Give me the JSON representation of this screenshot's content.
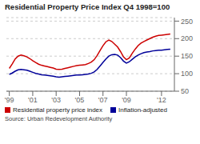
{
  "chart_data": {
    "type": "line",
    "title": "Residential Property Price Index  Q4 1998=100",
    "annotations": [
      "Source: Urban Redevelopment Authority"
    ],
    "x": [
      1999.0,
      1999.25,
      1999.5,
      1999.75,
      2000.0,
      2000.25,
      2000.5,
      2000.75,
      2001.0,
      2001.25,
      2001.5,
      2001.75,
      2002.0,
      2002.25,
      2002.5,
      2002.75,
      2003.0,
      2003.25,
      2003.5,
      2003.75,
      2004.0,
      2004.25,
      2004.5,
      2004.75,
      2005.0,
      2005.25,
      2005.5,
      2005.75,
      2006.0,
      2006.25,
      2006.5,
      2006.75,
      2007.0,
      2007.25,
      2007.5,
      2007.75,
      2008.0,
      2008.25,
      2008.5,
      2008.75,
      2009.0,
      2009.25,
      2009.5,
      2009.75,
      2010.0,
      2010.25,
      2010.5,
      2010.75,
      2011.0,
      2011.25,
      2011.5,
      2011.75,
      2012.0,
      2012.25,
      2012.5,
      2012.75
    ],
    "series": [
      {
        "name": "Residential property price index",
        "color": "#cc0000",
        "values": [
          115,
          128,
          142,
          150,
          153,
          151,
          148,
          143,
          137,
          132,
          127,
          124,
          122,
          120,
          118,
          116,
          113,
          112,
          113,
          115,
          117,
          119,
          121,
          123,
          124,
          125,
          126,
          129,
          133,
          140,
          152,
          166,
          180,
          191,
          196,
          192,
          184,
          176,
          163,
          148,
          140,
          145,
          158,
          170,
          180,
          187,
          192,
          196,
          200,
          204,
          207,
          209,
          210,
          211,
          212,
          213
        ]
      },
      {
        "name": "Inflation-adjusted",
        "color": "#000099",
        "values": [
          98,
          102,
          107,
          111,
          112,
          111,
          110,
          107,
          104,
          101,
          99,
          97,
          96,
          95,
          94,
          93,
          91,
          90,
          91,
          92,
          93,
          94,
          95,
          96,
          96,
          97,
          98,
          99,
          101,
          105,
          112,
          122,
          132,
          142,
          150,
          154,
          155,
          153,
          146,
          136,
          130,
          134,
          141,
          148,
          153,
          157,
          160,
          162,
          163,
          165,
          166,
          167,
          167,
          168,
          169,
          170
        ]
      }
    ],
    "xlim": [
      1998.75,
      2013.1
    ],
    "xticks": [
      {
        "value": 1999,
        "label": "'99"
      },
      {
        "value": 2001,
        "label": "'01"
      },
      {
        "value": 2003,
        "label": "'03"
      },
      {
        "value": 2005,
        "label": "'05"
      },
      {
        "value": 2007,
        "label": "'07"
      },
      {
        "value": 2009,
        "label": "'09"
      },
      {
        "value": 2012,
        "label": "'12"
      }
    ],
    "ylim": [
      50,
      260
    ],
    "yticks": [
      50,
      100,
      150,
      200,
      250
    ],
    "grid": "y",
    "legend": "bottom"
  }
}
